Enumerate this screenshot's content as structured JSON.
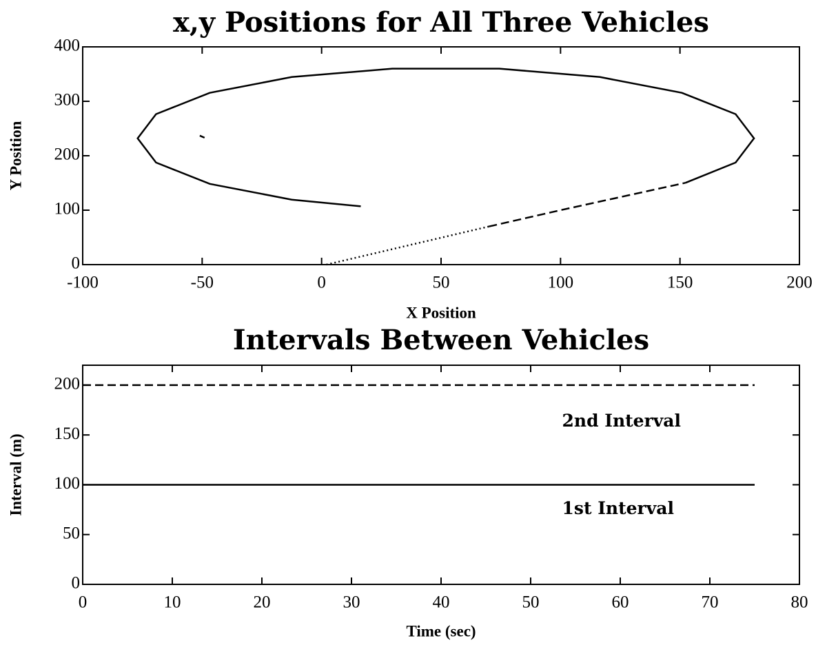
{
  "chart_data": [
    {
      "type": "line",
      "title": "x,y Positions for All Three Vehicles",
      "x_label": "X Position",
      "y_label": "Y Position",
      "xlim": [
        -100,
        200
      ],
      "xticks": [
        -100,
        -50,
        0,
        50,
        100,
        150,
        200
      ],
      "ylim": [
        0,
        400
      ],
      "yticks": [
        0,
        100,
        200,
        300,
        400
      ],
      "series": [
        {
          "color": "#000000",
          "dash": "dotted",
          "x": [
            2,
            70
          ],
          "values": [
            0,
            70
          ]
        },
        {
          "color": "#000000",
          "dash": "dashed",
          "x": [
            70,
            100,
            125,
            152.3
          ],
          "values": [
            70,
            100,
            124,
            150.2
          ]
        },
        {
          "color": "#000000",
          "dash": "solid",
          "x": [
            152.3,
            173.3,
            181,
            173.3,
            150.8,
            116.5,
            74.4,
            29.6,
            -12.5,
            -46.8,
            -69.3,
            -77,
            -69.3,
            -46.8,
            -12.5,
            16.4
          ],
          "values": [
            150.2,
            187.5,
            232,
            276.5,
            315.6,
            344.6,
            360,
            360,
            344.6,
            315.6,
            276.5,
            232,
            187.5,
            148.4,
            119.4,
            107.1
          ]
        },
        {
          "color": "#000000",
          "dash": "solid",
          "x": [
            -51,
            -49
          ],
          "values": [
            237,
            233
          ]
        }
      ]
    },
    {
      "type": "line",
      "title": "Intervals Between Vehicles",
      "x_label": "Time (sec)",
      "y_label": "Interval (m)",
      "xlim": [
        0,
        80
      ],
      "xticks": [
        0,
        10,
        20,
        30,
        40,
        50,
        60,
        70,
        80
      ],
      "ylim": [
        0,
        220
      ],
      "yticks": [
        0,
        50,
        100,
        150,
        200
      ],
      "series": [
        {
          "color": "#000000",
          "dash": "dashed",
          "x": [
            0,
            75
          ],
          "values": [
            200,
            200
          ]
        },
        {
          "color": "#000000",
          "dash": "solid",
          "x": [
            0,
            75
          ],
          "values": [
            100,
            100
          ]
        }
      ],
      "annotations": [
        {
          "text": "2nd Interval",
          "x": 53.5,
          "y": 163
        },
        {
          "text": "1st Interval",
          "x": 53.5,
          "y": 75
        }
      ]
    }
  ]
}
